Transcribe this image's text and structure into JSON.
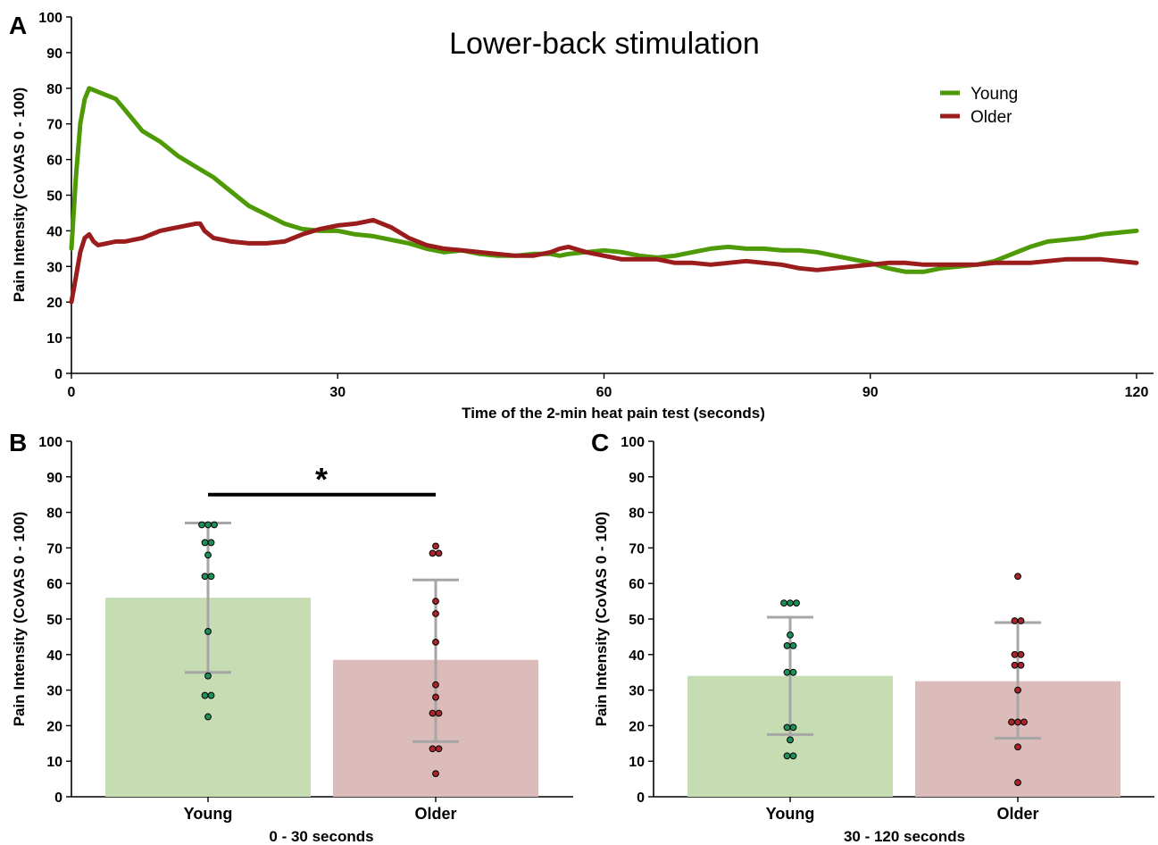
{
  "chart_data": [
    {
      "panel": "A",
      "type": "line",
      "title": "Lower-back stimulation",
      "xlabel": "Time of the 2-min heat pain test (seconds)",
      "ylabel": "Pain Intensity (CoVAS 0 - 100)",
      "xlim": [
        0,
        120
      ],
      "ylim": [
        0,
        100
      ],
      "xticks": [
        0,
        30,
        60,
        90,
        120
      ],
      "yticks": [
        0,
        10,
        20,
        30,
        40,
        50,
        60,
        70,
        80,
        90,
        100
      ],
      "legend_position": "top-right",
      "series": [
        {
          "name": "Young",
          "color": "#4e9a06",
          "x": [
            0,
            0.5,
            1,
            1.5,
            2,
            2.5,
            3,
            4,
            5,
            6,
            7,
            8,
            10,
            12,
            14,
            16,
            18,
            20,
            22,
            24,
            26,
            28,
            30,
            32,
            34,
            36,
            38,
            40,
            42,
            44,
            46,
            48,
            50,
            52,
            54,
            55,
            56,
            58,
            60,
            62,
            64,
            66,
            68,
            70,
            72,
            74,
            76,
            78,
            80,
            82,
            84,
            86,
            88,
            90,
            92,
            94,
            96,
            98,
            100,
            102,
            104,
            106,
            108,
            110,
            112,
            114,
            116,
            118,
            120
          ],
          "y": [
            35,
            55,
            70,
            77,
            80,
            79.5,
            79,
            78,
            77,
            74,
            71,
            68,
            65,
            61,
            58,
            55,
            51,
            47,
            44.5,
            42,
            40.5,
            40,
            40,
            39,
            38.5,
            37.5,
            36.5,
            35,
            34,
            34.5,
            33.5,
            33,
            33,
            33.5,
            33.5,
            33,
            33.5,
            34,
            34.5,
            34,
            33,
            32.5,
            33,
            34,
            35,
            35.5,
            35,
            35,
            34.5,
            34.5,
            34,
            33,
            32,
            31,
            29.5,
            28.5,
            28.5,
            29.5,
            30,
            30.5,
            31.5,
            33.5,
            35.5,
            37,
            37.5,
            38,
            39,
            39.5,
            40
          ]
        },
        {
          "name": "Older",
          "color": "#9b1c1c",
          "x": [
            0,
            0.5,
            1,
            1.5,
            2,
            2.5,
            3,
            4,
            5,
            6,
            8,
            10,
            12,
            14,
            14.5,
            15,
            16,
            18,
            20,
            22,
            24,
            26,
            28,
            30,
            32,
            34,
            36,
            38,
            40,
            42,
            44,
            46,
            48,
            50,
            52,
            54,
            55,
            56,
            58,
            60,
            62,
            64,
            66,
            68,
            70,
            72,
            74,
            76,
            78,
            80,
            82,
            84,
            86,
            88,
            90,
            92,
            94,
            96,
            98,
            100,
            102,
            104,
            106,
            108,
            110,
            112,
            114,
            116,
            118,
            120
          ],
          "y": [
            20,
            27,
            34,
            38,
            39,
            37,
            36,
            36.5,
            37,
            37,
            38,
            40,
            41,
            42,
            42,
            40,
            38,
            37,
            36.5,
            36.5,
            37,
            39,
            40.5,
            41.5,
            42,
            43,
            41,
            38,
            36,
            35,
            34.5,
            34,
            33.5,
            33,
            33,
            34,
            35,
            35.5,
            34,
            33,
            32,
            32,
            32,
            31,
            31,
            30.5,
            31,
            31.5,
            31,
            30.5,
            29.5,
            29,
            29.5,
            30,
            30.5,
            31,
            31,
            30.5,
            30.5,
            30.5,
            30.5,
            31,
            31,
            31,
            31.5,
            32,
            32,
            32,
            31.5,
            31
          ]
        }
      ]
    },
    {
      "panel": "B",
      "type": "bar",
      "xlabel": "0 - 30 seconds",
      "ylabel": "Pain Intensity (CoVAS 0 - 100)",
      "ylim": [
        0,
        100
      ],
      "yticks": [
        0,
        10,
        20,
        30,
        40,
        50,
        60,
        70,
        80,
        90,
        100
      ],
      "categories": [
        "Young",
        "Older"
      ],
      "values": [
        56,
        38.5
      ],
      "error_high": [
        77,
        61
      ],
      "error_low": [
        35,
        15.5
      ],
      "bar_colors": [
        "#c6ddb4",
        "#dcbbbb"
      ],
      "point_colors": [
        "#1e8f5a",
        "#a8252a"
      ],
      "points": [
        [
          76.5,
          76.5,
          76.5,
          71.5,
          71.5,
          68,
          62,
          62,
          46.5,
          34,
          28.5,
          28.5,
          22.5
        ],
        [
          70.5,
          68.5,
          68.5,
          55,
          51.5,
          43.5,
          31.5,
          28,
          23.5,
          23.5,
          13.5,
          13.5,
          6.5
        ]
      ],
      "significance": {
        "label": "*",
        "between": [
          "Young",
          "Older"
        ],
        "y": 85
      }
    },
    {
      "panel": "C",
      "type": "bar",
      "xlabel": "30 - 120 seconds",
      "ylabel": "Pain Intensity (CoVAS 0 - 100)",
      "ylim": [
        0,
        100
      ],
      "yticks": [
        0,
        10,
        20,
        30,
        40,
        50,
        60,
        70,
        80,
        90,
        100
      ],
      "categories": [
        "Young",
        "Older"
      ],
      "values": [
        34,
        32.5
      ],
      "error_high": [
        50.5,
        49
      ],
      "error_low": [
        17.5,
        16.5
      ],
      "bar_colors": [
        "#c6ddb4",
        "#dcbbbb"
      ],
      "point_colors": [
        "#1e8f5a",
        "#a8252a"
      ],
      "points": [
        [
          54.5,
          54.5,
          54.5,
          45.5,
          42.5,
          42.5,
          35,
          35,
          19.5,
          19.5,
          16,
          11.5,
          11.5
        ],
        [
          62,
          49.5,
          49.5,
          40,
          40,
          37,
          37,
          30,
          21,
          21,
          21,
          14,
          4
        ]
      ]
    }
  ]
}
